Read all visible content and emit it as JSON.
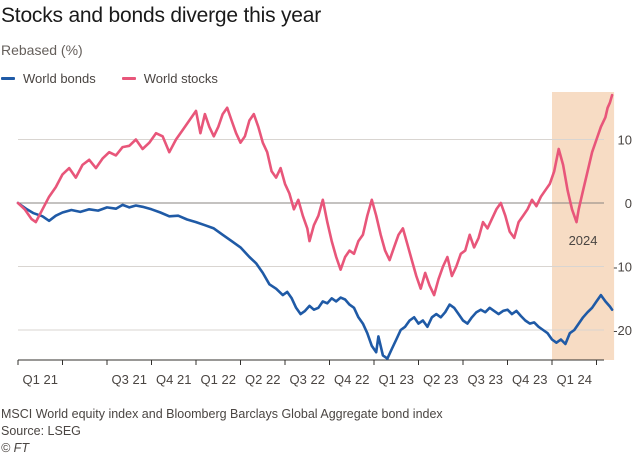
{
  "chart_data": {
    "type": "line",
    "title": "Stocks and bonds diverge this year",
    "subtitle": "Rebased (%)",
    "ylim": [
      -25,
      17
    ],
    "yticks": [
      10,
      0,
      -10,
      -20
    ],
    "xlim": [
      0,
      13.35
    ],
    "x_quarter_labels": [
      "Q1 21",
      "",
      "Q3 21",
      "Q4 21",
      "Q1 22",
      "Q2 22",
      "Q3 22",
      "Q4 22",
      "Q1 23",
      "Q2 23",
      "Q3 23",
      "Q4 23",
      "Q1 24"
    ],
    "x_unit": "quarters since Q1 21",
    "highlight": {
      "from": 12.0,
      "to": 13.35,
      "label": "2024",
      "color": "#f7dcc4"
    },
    "grid": true,
    "legend_position": "top-left",
    "series": [
      {
        "name": "World bonds",
        "color": "#1f5aa6",
        "points": [
          [
            0,
            0
          ],
          [
            0.2,
            -1.0
          ],
          [
            0.35,
            -1.6
          ],
          [
            0.55,
            -2.1
          ],
          [
            0.7,
            -2.8
          ],
          [
            0.85,
            -2.0
          ],
          [
            1.0,
            -1.5
          ],
          [
            1.2,
            -1.1
          ],
          [
            1.4,
            -1.4
          ],
          [
            1.6,
            -1.0
          ],
          [
            1.8,
            -1.2
          ],
          [
            2.0,
            -0.7
          ],
          [
            2.2,
            -0.9
          ],
          [
            2.35,
            -0.3
          ],
          [
            2.5,
            -0.7
          ],
          [
            2.65,
            -0.4
          ],
          [
            2.8,
            -0.6
          ],
          [
            3.0,
            -1.0
          ],
          [
            3.2,
            -1.5
          ],
          [
            3.4,
            -2.1
          ],
          [
            3.6,
            -2.0
          ],
          [
            3.8,
            -2.6
          ],
          [
            4.0,
            -3.0
          ],
          [
            4.2,
            -3.5
          ],
          [
            4.4,
            -4.0
          ],
          [
            4.6,
            -5.0
          ],
          [
            4.8,
            -6.0
          ],
          [
            5.0,
            -7.0
          ],
          [
            5.2,
            -8.5
          ],
          [
            5.35,
            -9.5
          ],
          [
            5.5,
            -11.0
          ],
          [
            5.65,
            -12.8
          ],
          [
            5.8,
            -13.5
          ],
          [
            5.95,
            -14.5
          ],
          [
            6.05,
            -14.0
          ],
          [
            6.15,
            -15.0
          ],
          [
            6.25,
            -16.5
          ],
          [
            6.35,
            -17.5
          ],
          [
            6.45,
            -17.0
          ],
          [
            6.55,
            -16.2
          ],
          [
            6.65,
            -16.8
          ],
          [
            6.75,
            -16.5
          ],
          [
            6.85,
            -15.5
          ],
          [
            6.95,
            -15.8
          ],
          [
            7.05,
            -15.0
          ],
          [
            7.15,
            -15.5
          ],
          [
            7.25,
            -14.9
          ],
          [
            7.35,
            -15.2
          ],
          [
            7.45,
            -16.0
          ],
          [
            7.55,
            -16.5
          ],
          [
            7.65,
            -18.0
          ],
          [
            7.75,
            -19.0
          ],
          [
            7.85,
            -20.5
          ],
          [
            7.95,
            -22.5
          ],
          [
            8.05,
            -23.5
          ],
          [
            8.1,
            -21.0
          ],
          [
            8.2,
            -24.0
          ],
          [
            8.3,
            -24.5
          ],
          [
            8.4,
            -23.0
          ],
          [
            8.5,
            -21.5
          ],
          [
            8.6,
            -20.0
          ],
          [
            8.7,
            -19.5
          ],
          [
            8.8,
            -18.5
          ],
          [
            8.9,
            -18.0
          ],
          [
            9.0,
            -19.0
          ],
          [
            9.1,
            -18.5
          ],
          [
            9.2,
            -19.5
          ],
          [
            9.3,
            -18.0
          ],
          [
            9.4,
            -17.5
          ],
          [
            9.5,
            -18.0
          ],
          [
            9.6,
            -17.2
          ],
          [
            9.7,
            -16.0
          ],
          [
            9.8,
            -16.5
          ],
          [
            9.9,
            -17.5
          ],
          [
            10.0,
            -18.5
          ],
          [
            10.1,
            -19.0
          ],
          [
            10.2,
            -18.0
          ],
          [
            10.3,
            -17.2
          ],
          [
            10.4,
            -16.8
          ],
          [
            10.5,
            -17.2
          ],
          [
            10.6,
            -16.5
          ],
          [
            10.7,
            -17.0
          ],
          [
            10.8,
            -17.5
          ],
          [
            10.9,
            -17.0
          ],
          [
            11.0,
            -16.8
          ],
          [
            11.1,
            -17.5
          ],
          [
            11.2,
            -17.0
          ],
          [
            11.3,
            -17.8
          ],
          [
            11.4,
            -18.5
          ],
          [
            11.5,
            -19.0
          ],
          [
            11.6,
            -18.8
          ],
          [
            11.7,
            -19.5
          ],
          [
            11.8,
            -20.0
          ],
          [
            11.9,
            -20.5
          ],
          [
            12.0,
            -21.5
          ],
          [
            12.1,
            -22.0
          ],
          [
            12.2,
            -21.5
          ],
          [
            12.3,
            -22.2
          ],
          [
            12.4,
            -20.5
          ],
          [
            12.5,
            -20.0
          ],
          [
            12.6,
            -19.0
          ],
          [
            12.7,
            -18.0
          ],
          [
            12.8,
            -17.2
          ],
          [
            12.9,
            -16.5
          ],
          [
            13.0,
            -15.5
          ],
          [
            13.1,
            -14.5
          ],
          [
            13.2,
            -15.5
          ],
          [
            13.3,
            -16.3
          ],
          [
            13.35,
            -16.8
          ]
        ]
      },
      {
        "name": "World stocks",
        "color": "#e8567a",
        "points": [
          [
            0,
            0
          ],
          [
            0.15,
            -1.0
          ],
          [
            0.3,
            -2.5
          ],
          [
            0.4,
            -3.0
          ],
          [
            0.55,
            -1.0
          ],
          [
            0.7,
            1.0
          ],
          [
            0.85,
            2.5
          ],
          [
            1.0,
            4.5
          ],
          [
            1.15,
            5.5
          ],
          [
            1.3,
            4.0
          ],
          [
            1.45,
            6.0
          ],
          [
            1.6,
            6.8
          ],
          [
            1.75,
            5.5
          ],
          [
            1.9,
            7.0
          ],
          [
            2.05,
            8.0
          ],
          [
            2.2,
            7.5
          ],
          [
            2.35,
            8.8
          ],
          [
            2.5,
            9.0
          ],
          [
            2.65,
            10.0
          ],
          [
            2.8,
            8.5
          ],
          [
            2.95,
            9.5
          ],
          [
            3.1,
            11.0
          ],
          [
            3.25,
            10.5
          ],
          [
            3.4,
            8.0
          ],
          [
            3.55,
            10.0
          ],
          [
            3.7,
            11.5
          ],
          [
            3.85,
            13.0
          ],
          [
            4.0,
            14.5
          ],
          [
            4.1,
            11.0
          ],
          [
            4.2,
            14.0
          ],
          [
            4.3,
            12.0
          ],
          [
            4.4,
            10.5
          ],
          [
            4.5,
            12.0
          ],
          [
            4.6,
            14.0
          ],
          [
            4.7,
            15.0
          ],
          [
            4.8,
            13.0
          ],
          [
            4.9,
            11.0
          ],
          [
            5.0,
            9.5
          ],
          [
            5.1,
            10.5
          ],
          [
            5.2,
            13.0
          ],
          [
            5.3,
            14.0
          ],
          [
            5.4,
            12.0
          ],
          [
            5.5,
            9.5
          ],
          [
            5.6,
            8.0
          ],
          [
            5.7,
            5.0
          ],
          [
            5.8,
            4.0
          ],
          [
            5.9,
            5.5
          ],
          [
            6.0,
            3.0
          ],
          [
            6.1,
            1.5
          ],
          [
            6.2,
            -1.0
          ],
          [
            6.3,
            0.5
          ],
          [
            6.4,
            -2.0
          ],
          [
            6.5,
            -4.0
          ],
          [
            6.55,
            -6.0
          ],
          [
            6.65,
            -3.5
          ],
          [
            6.75,
            -2.0
          ],
          [
            6.85,
            0.5
          ],
          [
            6.95,
            -3.0
          ],
          [
            7.05,
            -6.0
          ],
          [
            7.15,
            -8.5
          ],
          [
            7.25,
            -10.5
          ],
          [
            7.35,
            -8.5
          ],
          [
            7.45,
            -7.5
          ],
          [
            7.55,
            -8.0
          ],
          [
            7.65,
            -6.0
          ],
          [
            7.75,
            -5.0
          ],
          [
            7.85,
            -2.0
          ],
          [
            7.95,
            0.5
          ],
          [
            8.05,
            -2.0
          ],
          [
            8.15,
            -5.0
          ],
          [
            8.25,
            -7.5
          ],
          [
            8.35,
            -9.0
          ],
          [
            8.45,
            -7.0
          ],
          [
            8.55,
            -5.0
          ],
          [
            8.65,
            -4.0
          ],
          [
            8.75,
            -6.5
          ],
          [
            8.85,
            -9.0
          ],
          [
            8.95,
            -11.5
          ],
          [
            9.05,
            -13.5
          ],
          [
            9.15,
            -11.0
          ],
          [
            9.25,
            -13.0
          ],
          [
            9.35,
            -14.5
          ],
          [
            9.45,
            -12.0
          ],
          [
            9.55,
            -10.0
          ],
          [
            9.65,
            -8.5
          ],
          [
            9.75,
            -11.5
          ],
          [
            9.85,
            -10.0
          ],
          [
            9.95,
            -8.0
          ],
          [
            10.05,
            -7.5
          ],
          [
            10.15,
            -5.0
          ],
          [
            10.25,
            -7.0
          ],
          [
            10.35,
            -5.5
          ],
          [
            10.45,
            -3.0
          ],
          [
            10.55,
            -4.0
          ],
          [
            10.65,
            -2.5
          ],
          [
            10.75,
            -1.0
          ],
          [
            10.85,
            0.0
          ],
          [
            10.95,
            -2.0
          ],
          [
            11.05,
            -4.5
          ],
          [
            11.15,
            -5.5
          ],
          [
            11.25,
            -3.0
          ],
          [
            11.35,
            -2.0
          ],
          [
            11.45,
            -1.0
          ],
          [
            11.55,
            0.5
          ],
          [
            11.65,
            -0.5
          ],
          [
            11.75,
            1.0
          ],
          [
            11.85,
            2.0
          ],
          [
            11.95,
            3.0
          ],
          [
            12.05,
            5.0
          ],
          [
            12.15,
            8.5
          ],
          [
            12.25,
            6.0
          ],
          [
            12.35,
            2.0
          ],
          [
            12.45,
            -1.0
          ],
          [
            12.55,
            -3.0
          ],
          [
            12.6,
            -1.0
          ],
          [
            12.7,
            2.0
          ],
          [
            12.8,
            5.0
          ],
          [
            12.9,
            8.0
          ],
          [
            13.0,
            10.0
          ],
          [
            13.1,
            12.0
          ],
          [
            13.2,
            13.5
          ],
          [
            13.25,
            15.0
          ],
          [
            13.3,
            15.8
          ],
          [
            13.35,
            17.0
          ]
        ]
      }
    ]
  },
  "legend": {
    "bonds_label": "World bonds",
    "stocks_label": "World stocks"
  },
  "footer": {
    "note": "MSCI World equity index and Bloomberg Barclays Global Aggregate bond index",
    "source": "Source: LSEG",
    "credit": "© FT"
  },
  "colors": {
    "bonds": "#1f5aa6",
    "stocks": "#e8567a",
    "grid": "#d9d5d1",
    "zero_line": "#8a8580",
    "highlight": "#f7dcc4"
  }
}
